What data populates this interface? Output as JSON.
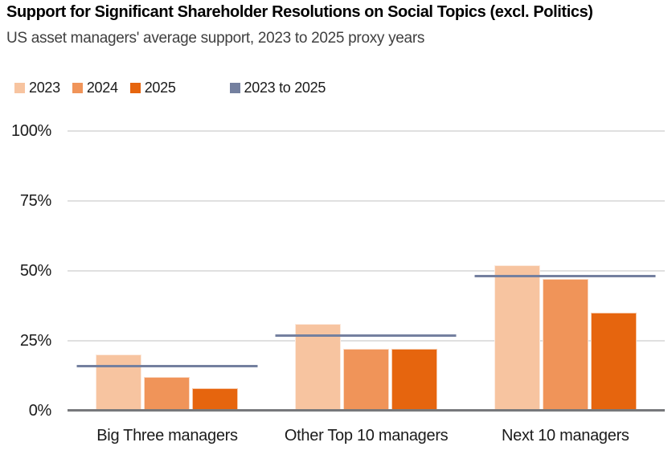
{
  "header": {
    "title": "Support for Significant Shareholder Resolutions on Social Topics (excl. Politics)",
    "subtitle": "US asset managers' average support, 2023 to 2025 proxy years"
  },
  "legend": {
    "items": [
      {
        "label": "2023",
        "color": "#f7c4a0",
        "marker": "square",
        "represents": "bar-series"
      },
      {
        "label": "2024",
        "color": "#f09459",
        "marker": "square",
        "represents": "bar-series"
      },
      {
        "label": "2025",
        "color": "#e6650e",
        "marker": "square",
        "represents": "bar-series"
      },
      {
        "label": "2023 to 2025",
        "color": "#74809f",
        "marker": "square",
        "represents": "benchmark-line"
      }
    ]
  },
  "chart_data": {
    "type": "bar",
    "title": "Support for Significant Shareholder Resolutions on Social Topics (excl. Politics)",
    "subtitle": "US asset managers' average support, 2023 to 2025 proxy years",
    "categories": [
      "Big Three managers",
      "Other Top 10 managers",
      "Next 10 managers"
    ],
    "series": [
      {
        "name": "2023",
        "color": "#f7c4a0",
        "values": [
          20,
          31,
          52
        ]
      },
      {
        "name": "2024",
        "color": "#f09459",
        "values": [
          12,
          22,
          47
        ]
      },
      {
        "name": "2025",
        "color": "#e6650e",
        "values": [
          8,
          22,
          35
        ]
      }
    ],
    "benchmark_series": {
      "name": "2023 to 2025",
      "color": "#74809f",
      "style": "horizontal-line",
      "values": [
        16,
        27,
        48
      ]
    },
    "xlabel": "",
    "ylabel": "",
    "ylim": [
      0,
      100
    ],
    "yticks": [
      {
        "value": 0,
        "label": "0%"
      },
      {
        "value": 25,
        "label": "25%"
      },
      {
        "value": 50,
        "label": "50%"
      },
      {
        "value": 75,
        "label": "75%"
      },
      {
        "value": 100,
        "label": "100%"
      }
    ],
    "grid": true,
    "legend_position": "top-left"
  },
  "colors": {
    "background": "#ffffff",
    "gridline": "#e0e0e0",
    "axis_line": "#77787b",
    "title_text": "#000000",
    "subtitle_text": "#404040",
    "tick_text": "#1b1b1b"
  }
}
